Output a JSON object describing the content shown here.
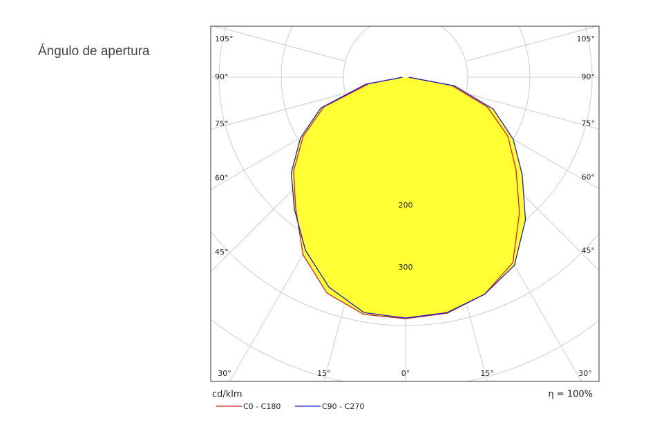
{
  "label": "Ángulo de apertura",
  "chart_data": {
    "type": "polar",
    "unit": "cd/klm",
    "efficiency": "η = 100%",
    "angles": [
      -90,
      -80,
      -70,
      -60,
      -50,
      -40,
      -30,
      -20,
      -10,
      0,
      10,
      20,
      30,
      40,
      50,
      60,
      70,
      80,
      90
    ],
    "series": [
      {
        "name": "C0 - C180",
        "color": "#cc2222",
        "values": [
          5,
          60,
          140,
          190,
          235,
          275,
          330,
          370,
          388,
          389,
          386,
          372,
          345,
          285,
          232,
          190,
          140,
          75,
          5
        ]
      },
      {
        "name": "C90 - C270",
        "color": "#1a1acc",
        "values": [
          5,
          65,
          145,
          195,
          240,
          278,
          322,
          360,
          385,
          388,
          385,
          372,
          350,
          300,
          245,
          200,
          150,
          80,
          5
        ]
      }
    ],
    "fill": "#ffff33",
    "rings": [
      100,
      200,
      300,
      400,
      500
    ],
    "rticks": [
      200,
      300
    ],
    "angle_ticks": [
      {
        "value": -105,
        "label": "105°"
      },
      {
        "value": -90,
        "label": "90°"
      },
      {
        "value": -75,
        "label": "75°"
      },
      {
        "value": -60,
        "label": "60°"
      },
      {
        "value": -45,
        "label": "45°"
      },
      {
        "value": -30,
        "label": "30°"
      },
      {
        "value": -15,
        "label": "15°"
      },
      {
        "value": 0,
        "label": "0°"
      },
      {
        "value": 15,
        "label": "15°"
      },
      {
        "value": 30,
        "label": "30°"
      },
      {
        "value": 45,
        "label": "45°"
      },
      {
        "value": 60,
        "label": "60°"
      },
      {
        "value": 75,
        "label": "75°"
      },
      {
        "value": 90,
        "label": "90°"
      },
      {
        "value": 105,
        "label": "105°"
      }
    ]
  }
}
